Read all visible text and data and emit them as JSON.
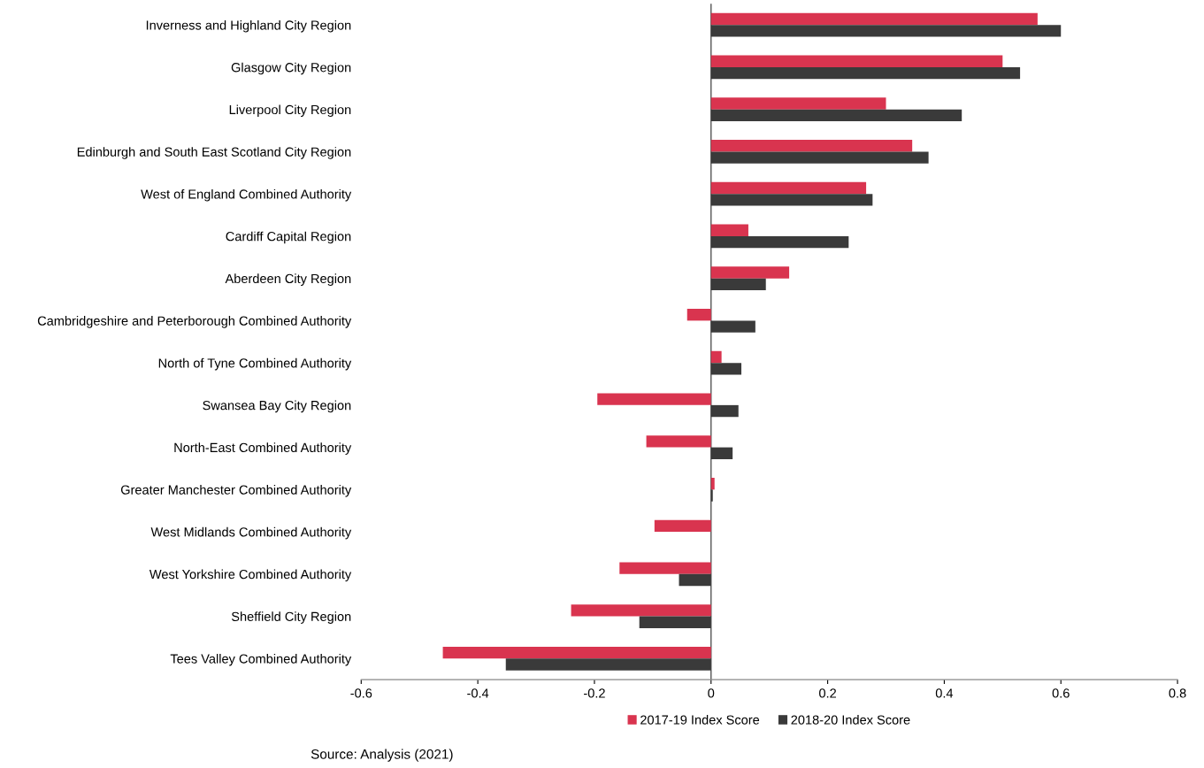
{
  "chart_data": {
    "type": "bar",
    "orientation": "horizontal",
    "categories": [
      "Inverness and Highland City Region",
      "Glasgow City Region",
      "Liverpool City Region",
      "Edinburgh and South East Scotland City Region",
      "West of England Combined Authority",
      "Cardiff Capital Region",
      "Aberdeen City Region",
      "Cambridgeshire and Peterborough Combined Authority",
      "North of Tyne Combined Authority",
      "Swansea Bay City Region",
      "North-East Combined Authority",
      "Greater Manchester Combined Authority",
      "West Midlands Combined Authority",
      "West Yorkshire Combined Authority",
      "Sheffield City Region",
      "Tees Valley Combined Authority"
    ],
    "series": [
      {
        "name": "2017-19 Index Score",
        "color": "#d9344f",
        "values": [
          0.56,
          0.5,
          0.3,
          0.345,
          0.266,
          0.064,
          0.134,
          -0.041,
          0.018,
          -0.195,
          -0.111,
          0.006,
          -0.097,
          -0.157,
          -0.24,
          -0.46
        ]
      },
      {
        "name": "2018-20 Index Score",
        "color": "#3a3a3a",
        "values": [
          0.6,
          0.53,
          0.43,
          0.373,
          0.277,
          0.236,
          0.094,
          0.076,
          0.052,
          0.047,
          0.037,
          0.003,
          0.0,
          -0.055,
          -0.123,
          -0.352
        ]
      }
    ],
    "xlim": [
      -0.6,
      0.8
    ],
    "xticks": [
      -0.6,
      -0.4,
      -0.2,
      0,
      0.2,
      0.4,
      0.6,
      0.8
    ],
    "ref_lines": [
      {
        "axis": "x",
        "value": 0,
        "color": "#555555"
      }
    ],
    "legend": "bottom",
    "grid": false,
    "annotations": [
      "Source: Analysis (2021)"
    ]
  }
}
